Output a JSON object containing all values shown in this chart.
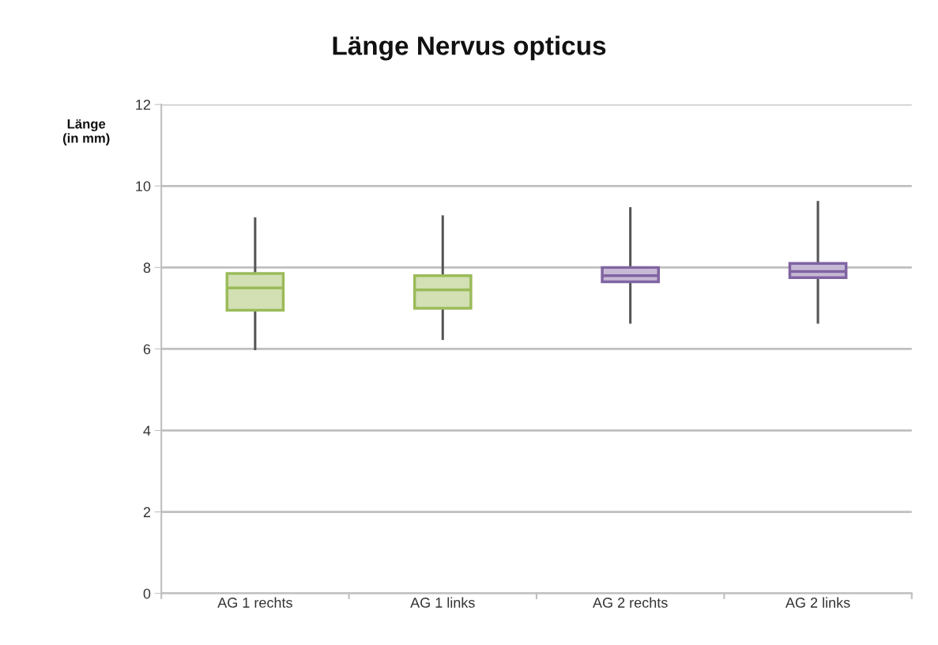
{
  "chart_data": {
    "type": "box",
    "title": "Länge Nervus opticus",
    "ylabel": "Länge\n(in mm)",
    "categories": [
      "AG 1 rechts",
      "AG 1 links",
      "AG 2 rechts",
      "AG 2 links"
    ],
    "boxes": [
      {
        "low": 6.0,
        "q1": 6.95,
        "median": 7.5,
        "q3": 7.85,
        "high": 9.2
      },
      {
        "low": 6.25,
        "q1": 7.0,
        "median": 7.45,
        "q3": 7.8,
        "high": 9.25
      },
      {
        "low": 6.65,
        "q1": 7.65,
        "median": 7.8,
        "q3": 8.0,
        "high": 9.45
      },
      {
        "low": 6.65,
        "q1": 7.75,
        "median": 7.9,
        "q3": 8.1,
        "high": 9.6
      }
    ],
    "colors": [
      "#9bbb59",
      "#9bbb59",
      "#8064a2",
      "#8064a2"
    ],
    "ylim": [
      0,
      12
    ],
    "yticks": [
      0,
      2,
      4,
      6,
      8,
      10,
      12
    ],
    "grid": "y",
    "legend": false
  }
}
